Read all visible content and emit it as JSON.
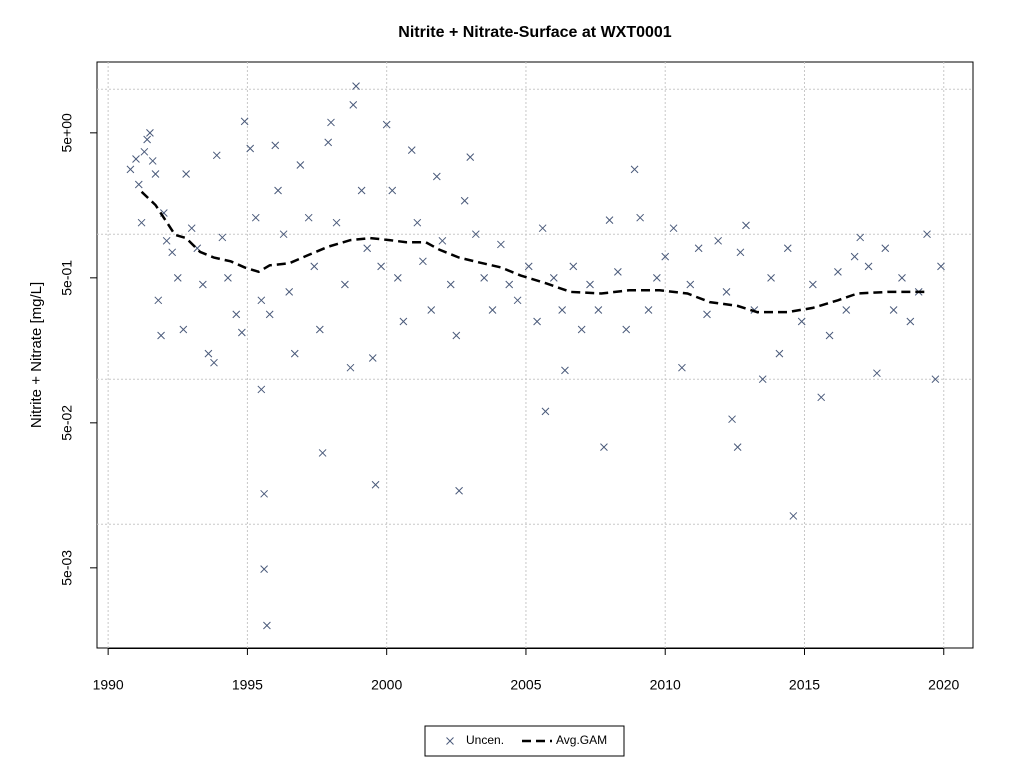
{
  "chart_data": {
    "type": "scatter",
    "title": "Nitrite + Nitrate-Surface at WXT0001",
    "y_label": "Nitrite + Nitrate [mg/L]",
    "log_y": true,
    "grid": true,
    "xlim": [
      1989.6,
      2021.05
    ],
    "xticks": [
      1990,
      1995,
      2000,
      2005,
      2010,
      2015,
      2020
    ],
    "ylim": [
      0.0014,
      15.4
    ],
    "yticks": [
      {
        "value": 5,
        "label": "5e+00"
      },
      {
        "value": 0.5,
        "label": "5e-01"
      },
      {
        "value": 0.05,
        "label": "5e-02"
      },
      {
        "value": 0.005,
        "label": "5e-03"
      }
    ],
    "ygrid": [
      10,
      1,
      0.1,
      0.01
    ],
    "legend": "bottom",
    "series": [
      {
        "name": "Uncen.",
        "kind": "scatter",
        "color": "#4a5a7a",
        "x": [
          1990.8,
          1991.0,
          1991.1,
          1991.3,
          1991.4,
          1991.5,
          1991.6,
          1991.7,
          1991.2,
          1991.8,
          1991.9,
          1992.0,
          1992.1,
          1992.3,
          1992.5,
          1992.7,
          1992.8,
          1993.0,
          1993.2,
          1993.4,
          1993.6,
          1993.8,
          1993.9,
          1994.1,
          1994.3,
          1994.6,
          1994.8,
          1994.9,
          1995.1,
          1995.3,
          1995.5,
          1995.5,
          1995.6,
          1995.6,
          1995.7,
          1995.8,
          1996.0,
          1996.1,
          1996.3,
          1996.5,
          1996.7,
          1996.9,
          1997.2,
          1997.4,
          1997.6,
          1997.7,
          1997.9,
          1998.0,
          1998.2,
          1998.5,
          1998.7,
          1998.8,
          1998.9,
          1999.1,
          1999.3,
          1999.6,
          1999.5,
          1999.8,
          2000.0,
          2000.2,
          2000.4,
          2000.6,
          2000.9,
          2001.1,
          2001.3,
          2001.6,
          2001.8,
          2002.0,
          2002.3,
          2002.5,
          2002.6,
          2002.8,
          2003.0,
          2003.2,
          2003.5,
          2003.8,
          2004.1,
          2004.4,
          2004.7,
          2005.1,
          2005.4,
          2005.6,
          2005.7,
          2006.0,
          2006.3,
          2006.4,
          2006.7,
          2007.0,
          2007.3,
          2007.6,
          2007.8,
          2008.0,
          2008.3,
          2008.6,
          2008.9,
          2009.1,
          2009.4,
          2009.7,
          2010.0,
          2010.3,
          2010.6,
          2010.9,
          2011.2,
          2011.5,
          2011.9,
          2012.2,
          2012.4,
          2012.6,
          2012.7,
          2012.9,
          2013.2,
          2013.5,
          2013.8,
          2014.1,
          2014.4,
          2014.6,
          2014.9,
          2015.3,
          2015.6,
          2015.9,
          2016.2,
          2016.5,
          2016.8,
          2017.0,
          2017.3,
          2017.6,
          2017.9,
          2018.2,
          2018.5,
          2018.8,
          2019.1,
          2019.4,
          2019.7,
          2019.9
        ],
        "values": [
          2.8,
          3.3,
          2.2,
          3.7,
          4.5,
          5.0,
          3.2,
          2.6,
          1.2,
          0.35,
          0.2,
          1.4,
          0.9,
          0.75,
          0.5,
          0.22,
          2.6,
          1.1,
          0.8,
          0.45,
          0.15,
          0.13,
          3.5,
          0.95,
          0.5,
          0.28,
          0.21,
          6.0,
          3.9,
          1.3,
          0.35,
          0.085,
          0.0162,
          0.0049,
          0.002,
          0.28,
          4.1,
          2.0,
          1.0,
          0.4,
          0.15,
          3.0,
          1.3,
          0.6,
          0.22,
          0.031,
          4.3,
          5.9,
          1.2,
          0.45,
          0.12,
          7.8,
          10.5,
          2.0,
          0.8,
          0.0187,
          0.14,
          0.6,
          5.7,
          2.0,
          0.5,
          0.25,
          3.8,
          1.2,
          0.65,
          0.3,
          2.5,
          0.9,
          0.45,
          0.2,
          0.017,
          1.7,
          3.4,
          1.0,
          0.5,
          0.3,
          0.85,
          0.45,
          0.35,
          0.6,
          0.25,
          1.1,
          0.06,
          0.5,
          0.3,
          0.115,
          0.6,
          0.22,
          0.45,
          0.3,
          0.034,
          1.25,
          0.55,
          0.22,
          2.8,
          1.3,
          0.3,
          0.5,
          0.7,
          1.1,
          0.12,
          0.45,
          0.8,
          0.28,
          0.9,
          0.4,
          0.053,
          0.034,
          0.75,
          1.15,
          0.3,
          0.1,
          0.5,
          0.15,
          0.8,
          0.0114,
          0.25,
          0.45,
          0.075,
          0.2,
          0.55,
          0.3,
          0.7,
          0.95,
          0.6,
          0.11,
          0.8,
          0.3,
          0.5,
          0.25,
          0.4,
          1.0,
          0.1,
          0.6
        ]
      },
      {
        "name": "Avg.GAM",
        "kind": "line",
        "color": "#000000",
        "x": [
          1991.2,
          1991.7,
          1992.4,
          1992.8,
          1993.3,
          1993.8,
          1994.4,
          1994.9,
          1995.4,
          1995.8,
          1996.5,
          1997.2,
          1997.9,
          1998.7,
          1999.4,
          2000.1,
          2000.7,
          2001.4,
          2001.9,
          2002.6,
          2003.3,
          2004.1,
          2004.8,
          2005.7,
          2006.6,
          2007.7,
          2008.7,
          2009.8,
          2010.8,
          2011.6,
          2012.6,
          2013.3,
          2014.4,
          2015.3,
          2016.2,
          2016.9,
          2018.0,
          2019.3
        ],
        "values": [
          1.96,
          1.59,
          0.99,
          0.94,
          0.755,
          0.69,
          0.65,
          0.59,
          0.55,
          0.61,
          0.63,
          0.72,
          0.82,
          0.91,
          0.94,
          0.91,
          0.88,
          0.88,
          0.78,
          0.69,
          0.64,
          0.59,
          0.52,
          0.46,
          0.4,
          0.39,
          0.41,
          0.41,
          0.39,
          0.34,
          0.32,
          0.29,
          0.29,
          0.31,
          0.35,
          0.39,
          0.4,
          0.4
        ]
      }
    ]
  }
}
